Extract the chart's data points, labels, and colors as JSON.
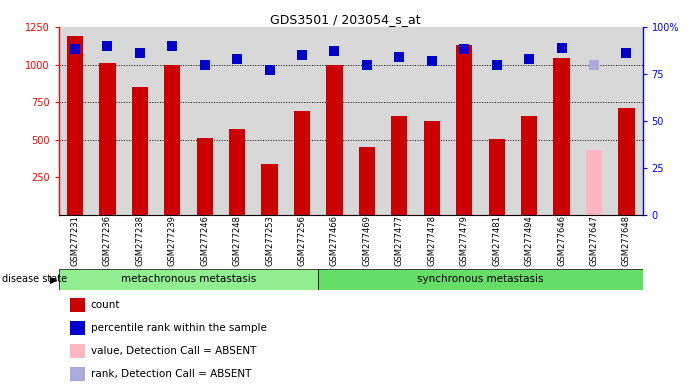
{
  "title": "GDS3501 / 203054_s_at",
  "samples": [
    "GSM277231",
    "GSM277236",
    "GSM277238",
    "GSM277239",
    "GSM277246",
    "GSM277248",
    "GSM277253",
    "GSM277256",
    "GSM277466",
    "GSM277469",
    "GSM277477",
    "GSM277478",
    "GSM277479",
    "GSM277481",
    "GSM277494",
    "GSM277646",
    "GSM277647",
    "GSM277648"
  ],
  "bar_values": [
    1190,
    1010,
    850,
    1000,
    510,
    570,
    340,
    690,
    995,
    455,
    655,
    625,
    1130,
    505,
    655,
    1040,
    435,
    710
  ],
  "bar_colors": [
    "#cc0000",
    "#cc0000",
    "#cc0000",
    "#cc0000",
    "#cc0000",
    "#cc0000",
    "#cc0000",
    "#cc0000",
    "#cc0000",
    "#cc0000",
    "#cc0000",
    "#cc0000",
    "#cc0000",
    "#cc0000",
    "#cc0000",
    "#cc0000",
    "#ffb6c1",
    "#cc0000"
  ],
  "dot_values_pct": [
    88,
    90,
    86,
    90,
    80,
    83,
    77,
    85,
    87,
    80,
    84,
    82,
    88,
    80,
    83,
    89,
    80,
    86
  ],
  "dot_colors": [
    "#0000cc",
    "#0000cc",
    "#0000cc",
    "#0000cc",
    "#0000cc",
    "#0000cc",
    "#0000cc",
    "#0000cc",
    "#0000cc",
    "#0000cc",
    "#0000cc",
    "#0000cc",
    "#0000cc",
    "#0000cc",
    "#0000cc",
    "#0000cc",
    "#aaaadd",
    "#0000cc"
  ],
  "group1_count": 8,
  "group1_label": "metachronous metastasis",
  "group2_label": "synchronous metastasis",
  "group1_color": "#90ee90",
  "group2_color": "#66dd66",
  "ylim_left": [
    0,
    1250
  ],
  "ylim_right": [
    0,
    100
  ],
  "yticks_left": [
    250,
    500,
    750,
    1000,
    1250
  ],
  "yticks_right": [
    0,
    25,
    50,
    75,
    100
  ],
  "grid_values": [
    500,
    750,
    1000
  ],
  "bar_width": 0.5,
  "dot_size": 45,
  "background_color": "#ffffff",
  "plot_bg_color": "#d8d8d8",
  "legend_items": [
    {
      "label": "count",
      "color": "#cc0000"
    },
    {
      "label": "percentile rank within the sample",
      "color": "#0000cc"
    },
    {
      "label": "value, Detection Call = ABSENT",
      "color": "#ffb6c1"
    },
    {
      "label": "rank, Detection Call = ABSENT",
      "color": "#aaaadd"
    }
  ],
  "disease_state_label": "disease state"
}
